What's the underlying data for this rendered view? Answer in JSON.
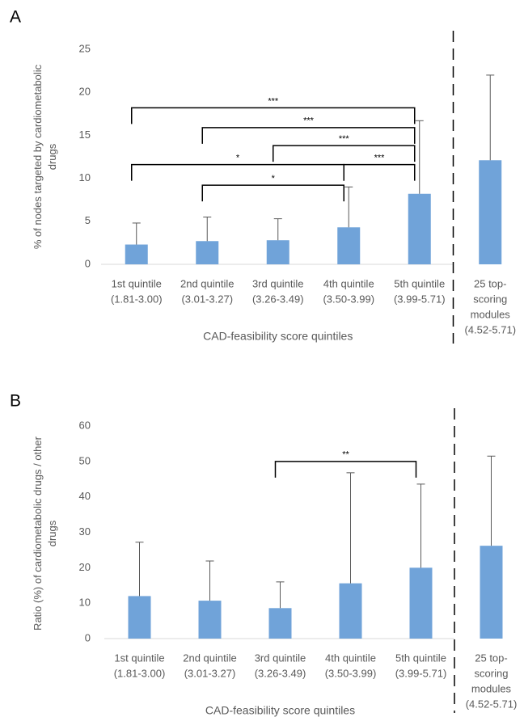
{
  "chart_data": [
    {
      "type": "bar",
      "panel": "A",
      "ylabel": [
        "% of nodes targeted by cardiometabolic",
        "drugs"
      ],
      "xlabel": "CAD-feasibility score quintiles",
      "categories": [
        [
          "1st quintile",
          "(1.81-3.00)"
        ],
        [
          "2nd quintile",
          "(3.01-3.27)"
        ],
        [
          "3rd quintile",
          "(3.26-3.49)"
        ],
        [
          "4th quintile",
          "(3.50-3.99)"
        ],
        [
          "5th quintile",
          "(3.99-5.71)"
        ],
        [
          "25 top-",
          "scoring",
          "modules",
          "(4.52-5.71)"
        ]
      ],
      "values": [
        2.3,
        2.7,
        2.8,
        4.3,
        8.2,
        12.1
      ],
      "errors": [
        2.5,
        2.8,
        2.5,
        4.7,
        8.5,
        9.9
      ],
      "color": "#70a3d9",
      "ylim": [
        0,
        25
      ],
      "yticks": [
        0,
        5,
        10,
        15,
        20,
        25
      ],
      "brackets": [
        {
          "from": 0,
          "to": 4,
          "label": "***"
        },
        {
          "from": 1,
          "to": 4,
          "label": "***"
        },
        {
          "from": 2,
          "to": 4,
          "label": "***"
        },
        {
          "from": 3,
          "to": 4,
          "label": "***"
        },
        {
          "from": 0,
          "to": 3,
          "label": "*"
        },
        {
          "from": 1,
          "to": 3,
          "label": "*"
        }
      ]
    },
    {
      "type": "bar",
      "panel": "B",
      "ylabel": [
        "Ratio (%) of cardiometabolic drugs / other",
        "drugs"
      ],
      "xlabel": "CAD-feasibility score quintiles",
      "categories": [
        [
          "1st quintile",
          "(1.81-3.00)"
        ],
        [
          "2nd quintile",
          "(3.01-3.27)"
        ],
        [
          "3rd quintile",
          "(3.26-3.49)"
        ],
        [
          "4th quintile",
          "(3.50-3.99)"
        ],
        [
          "5th quintile",
          "(3.99-5.71)"
        ],
        [
          "25 top-",
          "scoring",
          "modules",
          "(4.52-5.71)"
        ]
      ],
      "values": [
        12.0,
        10.7,
        8.6,
        15.6,
        20.0,
        26.2
      ],
      "errors": [
        15.2,
        11.2,
        7.4,
        31.2,
        23.6,
        25.3
      ],
      "color": "#70a3d9",
      "ylim": [
        0,
        60
      ],
      "yticks": [
        0,
        10,
        20,
        30,
        40,
        50,
        60
      ],
      "brackets": [
        {
          "from": 2,
          "to": 4,
          "label": "**"
        }
      ]
    }
  ]
}
